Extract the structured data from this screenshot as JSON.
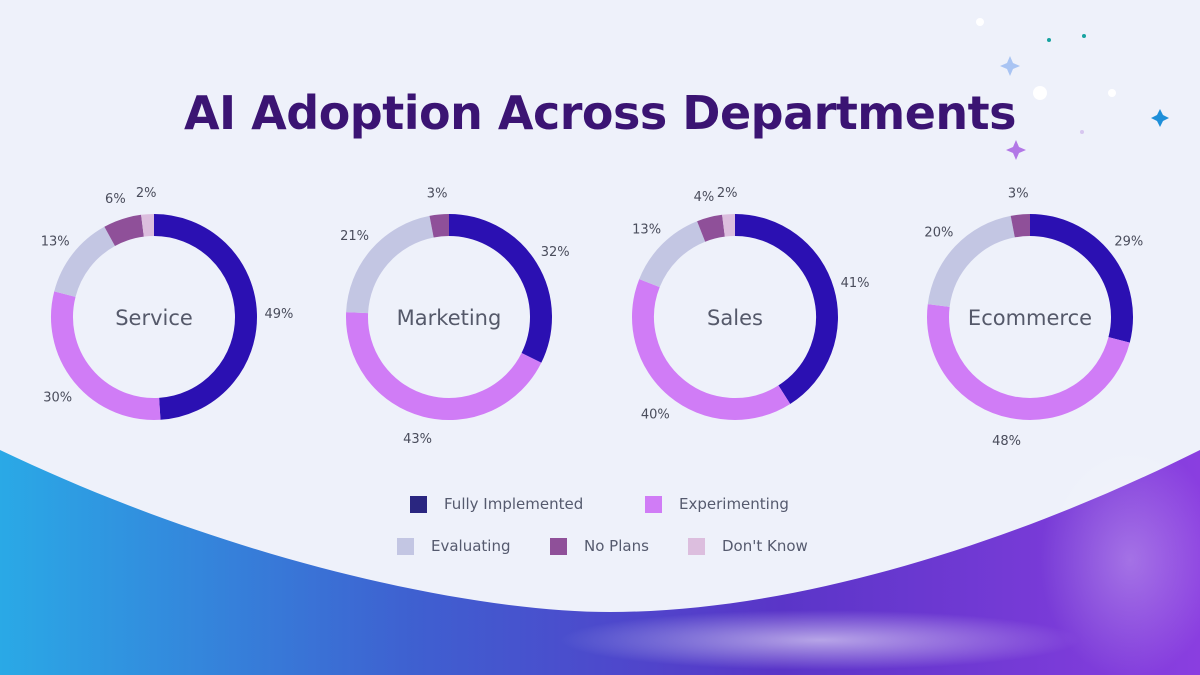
{
  "slide": {
    "title": "AI Adoption Across Departments"
  },
  "colors": {
    "background": "#eef1fa",
    "title": "#3b1473",
    "fully_implemented": "#2b10b2",
    "experimenting": "#d07cf6",
    "evaluating": "#c3c6e3",
    "no_plans": "#8f5099",
    "dont_know": "#dcbede",
    "legend_fully_implemented": "#2a2680"
  },
  "legend": [
    {
      "label": "Fully Implemented",
      "color": "#2a2680"
    },
    {
      "label": "Experimenting",
      "color": "#d07cf6"
    },
    {
      "label": "Evaluating",
      "color": "#c3c6e3"
    },
    {
      "label": "No Plans",
      "color": "#8f5099"
    },
    {
      "label": "Don't Know",
      "color": "#dcbede"
    }
  ],
  "chart_data": [
    {
      "type": "pie",
      "donut": true,
      "center_label": "Service",
      "categories": [
        "Fully Implemented",
        "Experimenting",
        "Evaluating",
        "No Plans",
        "Don't Know"
      ],
      "values": [
        49,
        30,
        13,
        6,
        2
      ],
      "labels": [
        "49%",
        "30%",
        "13%",
        "6%",
        "2%"
      ]
    },
    {
      "type": "pie",
      "donut": true,
      "center_label": "Marketing",
      "categories": [
        "Fully Implemented",
        "Experimenting",
        "Evaluating",
        "No Plans",
        "Don't Know"
      ],
      "values": [
        32,
        43,
        21,
        3,
        0
      ],
      "labels": [
        "32%",
        "43%",
        "21%",
        "3%",
        ""
      ]
    },
    {
      "type": "pie",
      "donut": true,
      "center_label": "Sales",
      "categories": [
        "Fully Implemented",
        "Experimenting",
        "Evaluating",
        "No Plans",
        "Don't Know"
      ],
      "values": [
        41,
        40,
        13,
        4,
        2
      ],
      "labels": [
        "41%",
        "40%",
        "13%",
        "4%",
        "2%"
      ]
    },
    {
      "type": "pie",
      "donut": true,
      "center_label": "Ecommerce",
      "categories": [
        "Fully Implemented",
        "Experimenting",
        "Evaluating",
        "No Plans",
        "Don't Know"
      ],
      "values": [
        29,
        48,
        20,
        3,
        0
      ],
      "labels": [
        "29%",
        "48%",
        "20%",
        "3%",
        ""
      ]
    }
  ]
}
